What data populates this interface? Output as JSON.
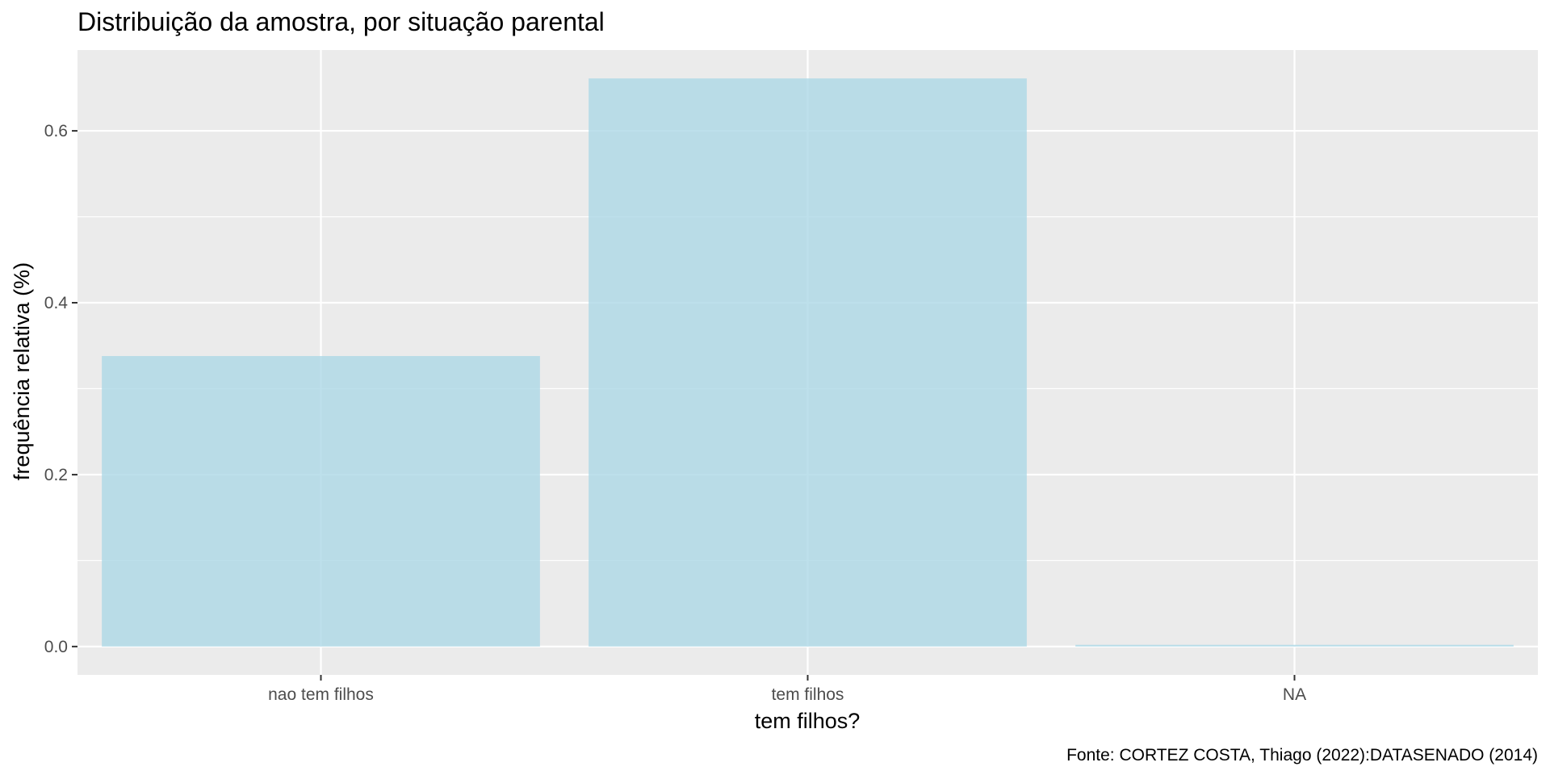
{
  "chart_data": {
    "type": "bar",
    "title": "Distribuição da amostra, por situação parental",
    "xlabel": "tem filhos?",
    "ylabel": "frequência relativa (%)",
    "caption": "Fonte: CORTEZ COSTA, Thiago (2022):DATASENADO (2014)",
    "categories": [
      "nao tem filhos",
      "tem filhos",
      "NA"
    ],
    "values": [
      0.338,
      0.661,
      0.002
    ],
    "ylim": [
      -0.033,
      0.694
    ],
    "yticks": [
      0.0,
      0.2,
      0.4,
      0.6
    ],
    "ytick_labels": [
      "0.0",
      "0.2",
      "0.4",
      "0.6"
    ],
    "grid": true,
    "colors": {
      "panel": "#ebebeb",
      "grid": "#ffffff",
      "bar_fill": "#add8e6",
      "bar_opacity": 0.8
    }
  }
}
